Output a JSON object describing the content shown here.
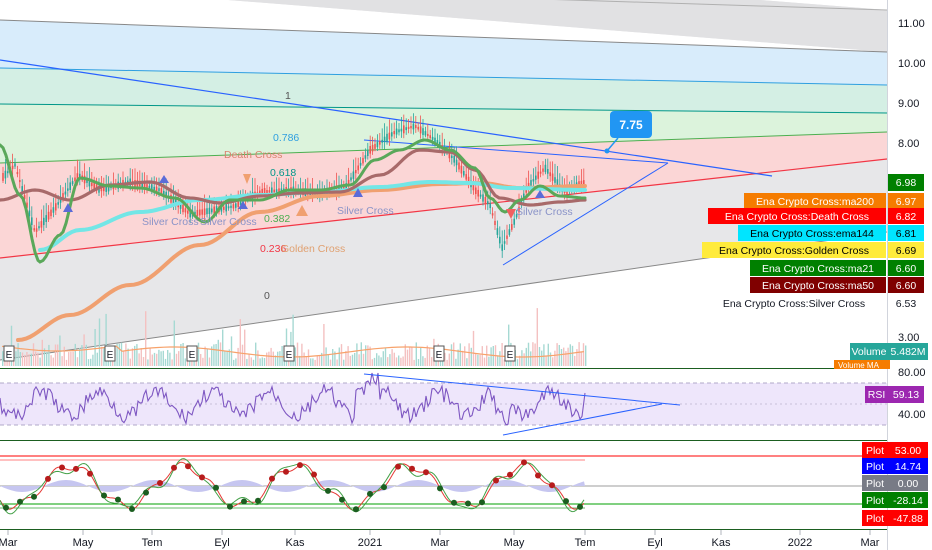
{
  "chart_data": {
    "type": "line",
    "x_ticks": [
      "Mar",
      "May",
      "Tem",
      "Eyl",
      "Kas",
      "2021",
      "Mar",
      "May",
      "Tem",
      "Eyl",
      "Kas",
      "2022",
      "Mar"
    ],
    "price_ticks": [
      "11.00",
      "10.00",
      "9.00",
      "8.00",
      "3.00"
    ],
    "rsi_ticks": [
      "80.00",
      "40.00"
    ],
    "annotations": {
      "callout": "7.75",
      "fib_levels": [
        {
          "label": "1",
          "value": 1
        },
        {
          "label": "0.786",
          "value": 0.786
        },
        {
          "label": "0.618",
          "value": 0.618
        },
        {
          "label": "0.382",
          "value": 0.382
        },
        {
          "label": "0.236",
          "value": 0.236
        },
        {
          "label": "0",
          "value": 0
        }
      ],
      "events": [
        "Death Cross",
        "Silver Cross",
        "Silver Cross",
        "Silver Cross",
        "Silver Cross",
        "Golden Cross",
        "Golden Cross",
        "Golden Cross"
      ],
      "earnings_marker": "E"
    },
    "series": [
      {
        "name": "Ena Crypto Cross:ma200",
        "last": "6.97",
        "color": "#f57c00",
        "text": "#ffffff"
      },
      {
        "name": "Ena Crypto Cross:Death Cross",
        "last": "6.82",
        "color": "#ff0000",
        "text": "#ffffff"
      },
      {
        "name": "Ena Crypto Cross:ema144",
        "last": "6.81",
        "color": "#00e5ff",
        "text": "#000000"
      },
      {
        "name": "Ena Crypto Cross:Golden Cross",
        "last": "6.69",
        "color": "#ffeb3b",
        "text": "#000000"
      },
      {
        "name": "Ena Crypto Cross:ma21",
        "last": "6.60",
        "color": "#008000",
        "text": "#ffffff"
      },
      {
        "name": "Ena Crypto Cross:ma50",
        "last": "6.60",
        "color": "#800000",
        "text": "#ffffff"
      },
      {
        "name": "Ena Crypto Cross:Silver Cross",
        "last": "6.53",
        "color": "#ffffff",
        "text": "#131722"
      }
    ],
    "price_last": "6.98",
    "volume": {
      "label": "Volume",
      "value": "5.482M",
      "second_label": "Volume MA"
    },
    "rsi": {
      "label": "RSI",
      "value": "59.13"
    },
    "plots": [
      {
        "label": "Plot",
        "value": "53.00",
        "color": "#ff0000"
      },
      {
        "label": "Plot",
        "value": "14.74",
        "color": "#0000ff"
      },
      {
        "label": "Plot",
        "value": "0.00",
        "color": "#787b86"
      },
      {
        "label": "Plot",
        "value": "-28.14",
        "color": "#008000"
      },
      {
        "label": "Plot",
        "value": "-47.88",
        "color": "#ff0000"
      }
    ]
  }
}
